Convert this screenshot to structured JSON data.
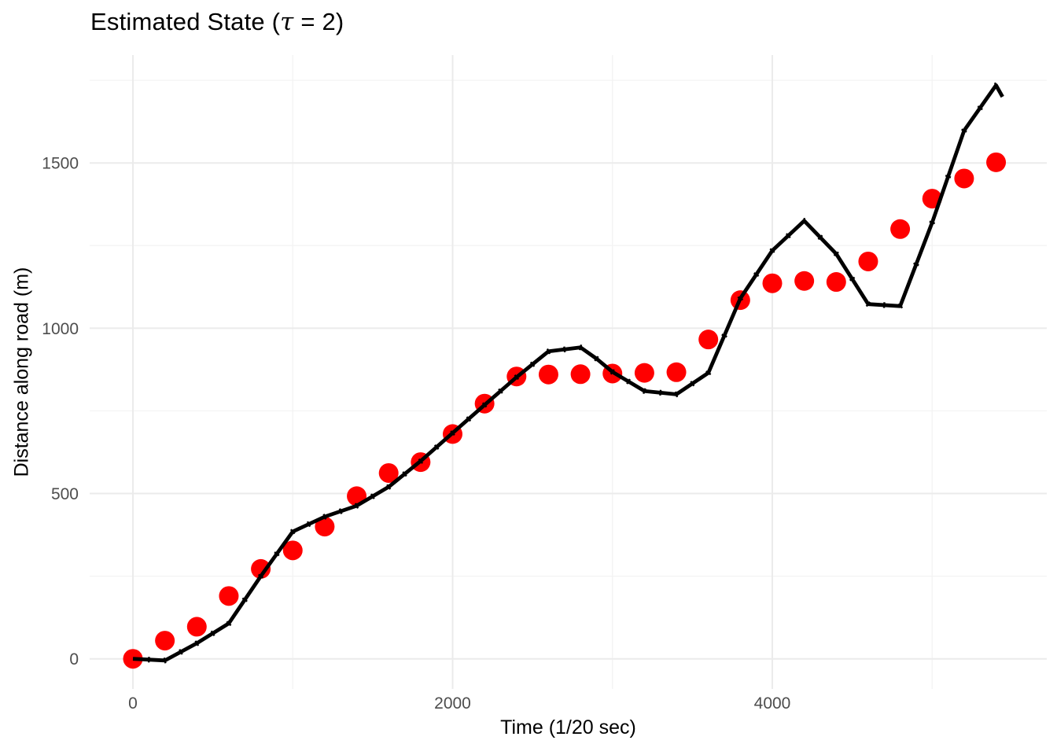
{
  "title": {
    "full": "Estimated State (τ = 2)",
    "prefix": "Estimated State (",
    "tau": "τ",
    "suffix": " = 2)"
  },
  "chart_data": {
    "type": "line",
    "title": "Estimated State (τ = 2)",
    "xlabel": "Time (1/20 sec)",
    "ylabel": "Distance along road (m)",
    "xlim": [
      -271,
      5717
    ],
    "ylim": [
      -91,
      1826
    ],
    "x_ticks_major": [
      0,
      2000,
      4000
    ],
    "x_ticks_minor": [
      1000,
      3000,
      5000
    ],
    "y_ticks_major": [
      0,
      500,
      1000,
      1500
    ],
    "y_ticks_minor": [
      250,
      750,
      1250,
      1750
    ],
    "grid": "major and minor light-gray gridlines on white background, no axis lines, no tick marks (theme_minimal style)",
    "legend_position": "none",
    "series": [
      {
        "name": "observed-positions",
        "type": "scatter",
        "color": "#FF0000",
        "marker": "circle",
        "marker_radius_px": 12.5,
        "points": [
          [
            0,
            0
          ],
          [
            200,
            55
          ],
          [
            400,
            97
          ],
          [
            600,
            190
          ],
          [
            800,
            272
          ],
          [
            1000,
            328
          ],
          [
            1200,
            400
          ],
          [
            1400,
            492
          ],
          [
            1600,
            562
          ],
          [
            1800,
            595
          ],
          [
            2000,
            680
          ],
          [
            2200,
            772
          ],
          [
            2400,
            854
          ],
          [
            2600,
            860
          ],
          [
            2800,
            861
          ],
          [
            3000,
            863
          ],
          [
            3200,
            865
          ],
          [
            3400,
            867
          ],
          [
            3600,
            966
          ],
          [
            3800,
            1085
          ],
          [
            4000,
            1136
          ],
          [
            4200,
            1143
          ],
          [
            4400,
            1140
          ],
          [
            4600,
            1202
          ],
          [
            4800,
            1300
          ],
          [
            5000,
            1392
          ],
          [
            5200,
            1453
          ],
          [
            5400,
            1502
          ]
        ]
      },
      {
        "name": "estimated-state-line",
        "type": "line",
        "color": "#000000",
        "stroke_width_px": 4.8,
        "points": [
          [
            0,
            0
          ],
          [
            200,
            -5
          ],
          [
            400,
            47
          ],
          [
            600,
            107
          ],
          [
            800,
            250
          ],
          [
            1000,
            385
          ],
          [
            1200,
            430
          ],
          [
            1400,
            463
          ],
          [
            1600,
            520
          ],
          [
            1800,
            598
          ],
          [
            2000,
            683
          ],
          [
            2200,
            768
          ],
          [
            2400,
            852
          ],
          [
            2600,
            930
          ],
          [
            2800,
            942
          ],
          [
            2900,
            908
          ],
          [
            3000,
            868
          ],
          [
            3200,
            810
          ],
          [
            3400,
            800
          ],
          [
            3600,
            865
          ],
          [
            3800,
            1090
          ],
          [
            4000,
            1235
          ],
          [
            4200,
            1325
          ],
          [
            4400,
            1225
          ],
          [
            4600,
            1073
          ],
          [
            4800,
            1067
          ],
          [
            5000,
            1320
          ],
          [
            5200,
            1598
          ],
          [
            5400,
            1735
          ],
          [
            5440,
            1700
          ]
        ]
      }
    ]
  },
  "colors": {
    "background": "#FFFFFF",
    "grid_major": "#EBEBEB",
    "grid_minor": "#F3F3F3",
    "tick_label": "#4D4D4D",
    "text": "#000000",
    "dot": "#FF0000",
    "line": "#000000"
  }
}
